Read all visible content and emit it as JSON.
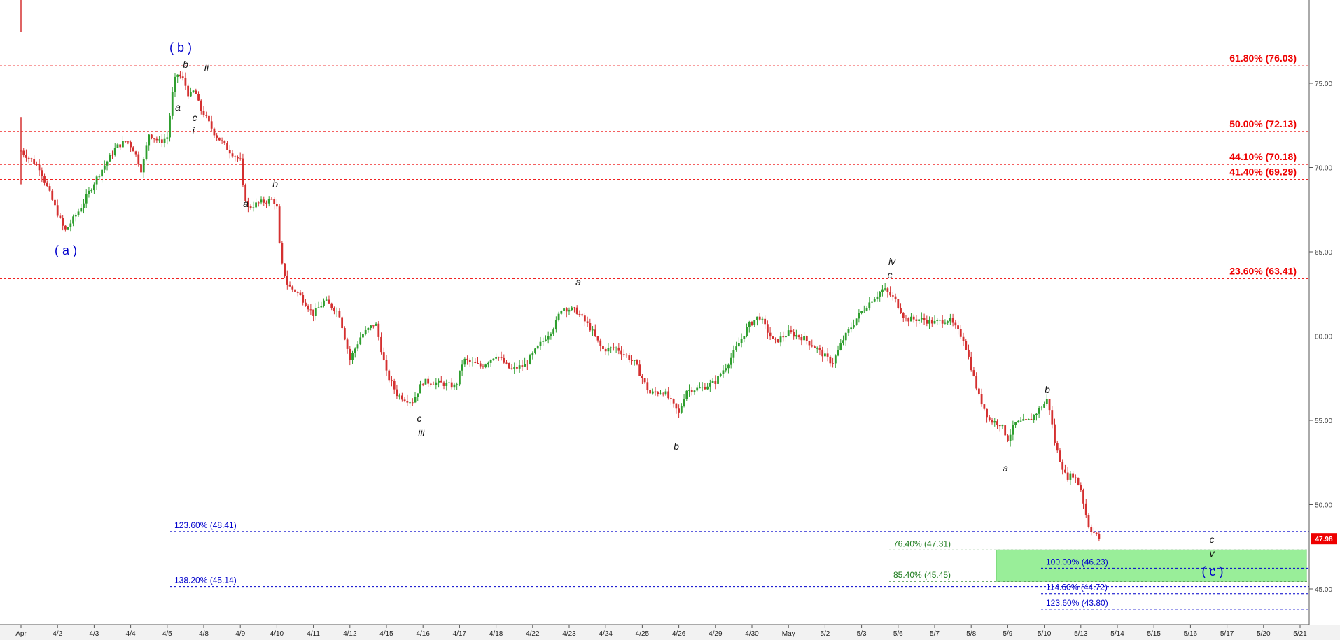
{
  "chart_data": {
    "type": "candlestick",
    "title": "",
    "xlabel": "",
    "ylabel": "",
    "ylim": [
      43.0,
      80.0
    ],
    "y_ticks": [
      45,
      50,
      55,
      60,
      65,
      70,
      75
    ],
    "y_tick_labels": [
      "45.00",
      "50.00",
      "55.00",
      "60.00",
      "65.00",
      "70.00",
      "75.00"
    ],
    "x_tick_labels": [
      "Apr",
      "4/2",
      "4/3",
      "4/4",
      "4/5",
      "4/8",
      "4/9",
      "4/10",
      "4/11",
      "4/12",
      "4/15",
      "4/16",
      "4/17",
      "4/18",
      "4/22",
      "4/23",
      "4/24",
      "4/25",
      "4/26",
      "4/29",
      "4/30",
      "May",
      "5/2",
      "5/3",
      "5/6",
      "5/7",
      "5/8",
      "5/9",
      "5/10",
      "5/13",
      "5/14",
      "5/15",
      "5/16",
      "5/17",
      "5/20",
      "5/21"
    ],
    "last_price": {
      "value": 47.98,
      "label": "47.98"
    },
    "retracement_levels": [
      {
        "label": "61.80% (76.03)",
        "value": 76.03
      },
      {
        "label": "50.00% (72.13)",
        "value": 72.13
      },
      {
        "label": "44.10% (70.18)",
        "value": 70.18
      },
      {
        "label": "41.40% (69.29)",
        "value": 69.29
      },
      {
        "label": "23.60% (63.41)",
        "value": 63.41
      }
    ],
    "extension_levels_left": [
      {
        "label": "123.60% (48.41)",
        "value": 48.41
      },
      {
        "label": "138.20% (45.14)",
        "value": 45.14
      }
    ],
    "target_levels_green": [
      {
        "label": "76.40% (47.31)",
        "value": 47.31
      },
      {
        "label": "85.40% (45.45)",
        "value": 45.45
      }
    ],
    "target_levels_blue": [
      {
        "label": "100.00% (46.23)",
        "value": 46.23
      },
      {
        "label": "114.60% (44.72)",
        "value": 44.72
      },
      {
        "label": "123.60% (43.80)",
        "value": 43.8
      }
    ],
    "target_zone": {
      "from": 45.45,
      "to": 47.31
    },
    "path_points": [
      [
        0,
        71.0
      ],
      [
        0.5,
        70.0
      ],
      [
        1.2,
        66.2
      ],
      [
        1.6,
        67.5
      ],
      [
        2.1,
        69.5
      ],
      [
        2.6,
        71.2
      ],
      [
        2.9,
        71.6
      ],
      [
        3.1,
        71.0
      ],
      [
        3.3,
        69.8
      ],
      [
        3.5,
        72.0
      ],
      [
        3.8,
        71.5
      ],
      [
        4.0,
        71.8
      ],
      [
        4.15,
        74.5
      ],
      [
        4.25,
        75.6
      ],
      [
        4.45,
        75.2
      ],
      [
        4.6,
        74.2
      ],
      [
        4.75,
        74.6
      ],
      [
        4.9,
        73.5
      ],
      [
        5.0,
        73.2
      ],
      [
        5.3,
        72.0
      ],
      [
        5.7,
        71.0
      ],
      [
        6.0,
        70.4
      ],
      [
        6.02,
        69.3
      ],
      [
        6.2,
        67.6
      ],
      [
        6.5,
        67.9
      ],
      [
        6.9,
        68.1
      ],
      [
        7.0,
        67.6
      ],
      [
        7.1,
        64.5
      ],
      [
        7.3,
        63.0
      ],
      [
        7.6,
        62.5
      ],
      [
        8.0,
        61.3
      ],
      [
        8.3,
        62.1
      ],
      [
        8.7,
        61.4
      ],
      [
        9.0,
        58.6
      ],
      [
        9.3,
        60.0
      ],
      [
        9.7,
        60.8
      ],
      [
        10.0,
        57.8
      ],
      [
        10.3,
        56.5
      ],
      [
        10.7,
        56.1
      ],
      [
        11.0,
        57.3
      ],
      [
        11.5,
        57.2
      ],
      [
        11.9,
        57.0
      ],
      [
        12.1,
        58.6
      ],
      [
        12.6,
        58.2
      ],
      [
        13.0,
        58.9
      ],
      [
        13.4,
        58.0
      ],
      [
        13.8,
        58.3
      ],
      [
        14.2,
        59.5
      ],
      [
        14.6,
        60.6
      ],
      [
        14.8,
        61.7
      ],
      [
        15.2,
        61.5
      ],
      [
        15.6,
        60.4
      ],
      [
        15.9,
        59.2
      ],
      [
        16.3,
        59.3
      ],
      [
        16.8,
        58.4
      ],
      [
        17.2,
        56.6
      ],
      [
        17.6,
        56.7
      ],
      [
        18.0,
        55.4
      ],
      [
        18.2,
        56.8
      ],
      [
        18.6,
        56.9
      ],
      [
        19.0,
        57.3
      ],
      [
        19.4,
        58.6
      ],
      [
        19.9,
        60.6
      ],
      [
        20.2,
        61.2
      ],
      [
        20.6,
        59.6
      ],
      [
        21.0,
        60.2
      ],
      [
        21.4,
        59.9
      ],
      [
        21.8,
        59.2
      ],
      [
        22.2,
        58.4
      ],
      [
        22.5,
        59.8
      ],
      [
        22.9,
        61.2
      ],
      [
        23.3,
        62.2
      ],
      [
        23.6,
        62.8
      ],
      [
        23.9,
        62.2
      ],
      [
        24.2,
        61.0
      ],
      [
        24.6,
        61.0
      ],
      [
        25.0,
        60.8
      ],
      [
        25.4,
        61.0
      ],
      [
        25.8,
        59.8
      ],
      [
        26.2,
        56.5
      ],
      [
        26.5,
        55.0
      ],
      [
        26.8,
        54.8
      ],
      [
        27.0,
        53.9
      ],
      [
        27.2,
        54.8
      ],
      [
        27.6,
        55.0
      ],
      [
        28.0,
        56.0
      ],
      [
        28.1,
        56.3
      ],
      [
        28.3,
        53.5
      ],
      [
        28.6,
        51.6
      ],
      [
        28.8,
        51.8
      ],
      [
        29.0,
        50.9
      ],
      [
        29.2,
        48.8
      ],
      [
        29.4,
        48.2
      ],
      [
        29.5,
        47.98
      ]
    ]
  },
  "wave_labels": [
    {
      "text": "( a )",
      "major": true
    },
    {
      "text": "( b )",
      "major": true
    },
    {
      "text": "( c )",
      "major": true
    },
    {
      "text": "a"
    },
    {
      "text": "b"
    },
    {
      "text": "c"
    },
    {
      "text": "i"
    },
    {
      "text": "ii"
    },
    {
      "text": "a"
    },
    {
      "text": "b"
    },
    {
      "text": "c"
    },
    {
      "text": "iii"
    },
    {
      "text": "a"
    },
    {
      "text": "b"
    },
    {
      "text": "c"
    },
    {
      "text": "iv"
    },
    {
      "text": "a"
    },
    {
      "text": "b"
    },
    {
      "text": "c"
    },
    {
      "text": "v"
    }
  ],
  "colors": {
    "retracement": "#ee0000",
    "extension": "#0000cc",
    "target_green": "#1a7a1a",
    "zone_fill": "#99ee99",
    "candle_up": "#2e9e2e",
    "candle_down": "#d43030",
    "price_badge": "#ee0000"
  }
}
